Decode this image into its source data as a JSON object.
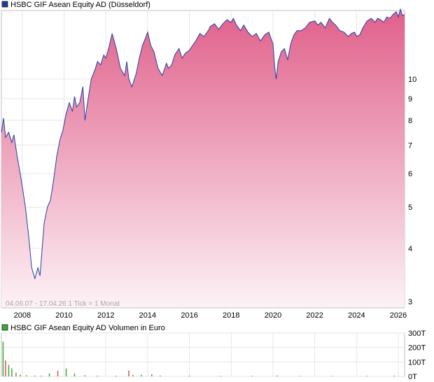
{
  "chart_data": [
    {
      "type": "area",
      "title": "HSBC GIF Asean Equity AD (Düsseldorf)",
      "legend_color": "#1a3c9c",
      "line_color": "#2440a8",
      "fill_top_color": "#e0608a",
      "fill_bottom_color": "#fdf2f6",
      "y_scale": "log",
      "ylim": [
        2.9,
        14.5
      ],
      "y_ticks": [
        3,
        4,
        5,
        6,
        7,
        8,
        9,
        10
      ],
      "xlim": [
        2007.0,
        2026.3
      ],
      "x_ticks": [
        "2008",
        "2010",
        "2012",
        "2014",
        "2016",
        "2018",
        "2020",
        "2022",
        "2024",
        "2026"
      ],
      "info_text": "04.06.07 - 17.04.26   1 Tick = 1 Monat",
      "grid": true,
      "series": [
        {
          "x": [
            2007.0,
            2007.1,
            2007.2,
            2007.35,
            2007.5,
            2007.6,
            2007.75,
            2007.9,
            2008.0,
            2008.15,
            2008.3,
            2008.45,
            2008.6,
            2008.75,
            2008.85,
            2008.95,
            2009.05,
            2009.2,
            2009.35,
            2009.5,
            2009.65,
            2009.8,
            2009.95,
            2010.1,
            2010.25,
            2010.4,
            2010.5,
            2010.6,
            2010.75,
            2010.9,
            2011.0,
            2011.15,
            2011.3,
            2011.5,
            2011.6,
            2011.75,
            2011.9,
            2012.0,
            2012.15,
            2012.3,
            2012.5,
            2012.7,
            2012.9,
            2013.0,
            2013.1,
            2013.25,
            2013.45,
            2013.6,
            2013.75,
            2013.9,
            2014.0,
            2014.15,
            2014.3,
            2014.5,
            2014.7,
            2014.9,
            2015.0,
            2015.15,
            2015.3,
            2015.5,
            2015.65,
            2015.8,
            2016.0,
            2016.15,
            2016.3,
            2016.5,
            2016.7,
            2016.9,
            2017.0,
            2017.2,
            2017.4,
            2017.6,
            2017.8,
            2018.0,
            2018.1,
            2018.25,
            2018.45,
            2018.6,
            2018.8,
            2019.0,
            2019.2,
            2019.4,
            2019.6,
            2019.8,
            2020.0,
            2020.08,
            2020.15,
            2020.25,
            2020.4,
            2020.55,
            2020.7,
            2020.85,
            2021.0,
            2021.15,
            2021.35,
            2021.55,
            2021.75,
            2022.0,
            2022.15,
            2022.3,
            2022.5,
            2022.7,
            2022.85,
            2023.0,
            2023.2,
            2023.4,
            2023.6,
            2023.75,
            2023.9,
            2024.0,
            2024.15,
            2024.3,
            2024.5,
            2024.7,
            2024.9,
            2025.0,
            2025.15,
            2025.3,
            2025.45,
            2025.6,
            2025.75,
            2025.9,
            2026.0,
            2026.1,
            2026.2,
            2026.3
          ],
          "values": [
            7.5,
            8.1,
            7.3,
            7.5,
            7.1,
            7.4,
            6.6,
            6.0,
            5.6,
            5.0,
            4.3,
            3.6,
            3.4,
            3.6,
            3.45,
            4.0,
            4.6,
            5.0,
            5.2,
            5.8,
            6.6,
            7.2,
            7.6,
            8.3,
            8.8,
            8.4,
            9.1,
            8.6,
            8.8,
            9.6,
            8.0,
            9.0,
            10.0,
            10.6,
            11.0,
            10.8,
            11.4,
            11.2,
            11.9,
            12.8,
            11.8,
            10.6,
            10.2,
            11.0,
            10.0,
            9.6,
            10.3,
            11.2,
            12.0,
            12.5,
            12.9,
            12.0,
            11.6,
            10.6,
            10.2,
            10.9,
            10.6,
            10.8,
            11.4,
            11.8,
            11.2,
            11.5,
            11.7,
            12.0,
            12.3,
            12.8,
            12.6,
            13.0,
            13.3,
            13.5,
            13.1,
            13.5,
            13.8,
            13.6,
            13.9,
            13.4,
            13.0,
            13.4,
            12.9,
            12.6,
            12.8,
            12.3,
            12.7,
            12.9,
            12.1,
            10.7,
            10.0,
            11.0,
            11.6,
            11.8,
            11.1,
            12.1,
            12.7,
            13.0,
            13.0,
            13.2,
            13.6,
            13.7,
            13.4,
            13.6,
            13.2,
            13.9,
            13.6,
            13.4,
            13.0,
            12.9,
            12.6,
            12.8,
            12.9,
            12.6,
            12.7,
            13.2,
            13.7,
            13.9,
            13.6,
            13.9,
            13.8,
            13.6,
            14.0,
            13.9,
            14.2,
            14.4,
            14.0,
            14.6,
            14.1,
            14.2
          ]
        }
      ]
    },
    {
      "type": "bar",
      "title": "HSBC GIF Asean Equity AD Volumen in Euro",
      "legend_color": "#3aa83a",
      "ylim": [
        0,
        300000
      ],
      "y_tick_labels": [
        "0T",
        "100T",
        "200T",
        "300T"
      ],
      "y_tick_values": [
        0,
        100000,
        200000,
        300000
      ],
      "xlim": [
        2007.0,
        2026.3
      ],
      "grid": true,
      "x": [
        2007.08,
        2007.2,
        2007.35,
        2007.5,
        2007.7,
        2007.9,
        2008.2,
        2008.6,
        2008.9,
        2009.3,
        2009.7,
        2010.1,
        2010.5,
        2011.0,
        2011.6,
        2012.5,
        2013.1,
        2013.3,
        2013.7,
        2014.2,
        2014.6,
        2016.0,
        2017.5,
        2019.0,
        2020.2,
        2021.3,
        2022.8,
        2024.5,
        2025.8
      ],
      "values": [
        240000,
        110000,
        80000,
        55000,
        25000,
        12000,
        8000,
        6000,
        5000,
        20000,
        40000,
        55000,
        20000,
        8000,
        5000,
        5000,
        40000,
        10000,
        12000,
        15000,
        6000,
        5000,
        4000,
        4000,
        6000,
        3000,
        3000,
        4000,
        5000
      ]
    }
  ]
}
